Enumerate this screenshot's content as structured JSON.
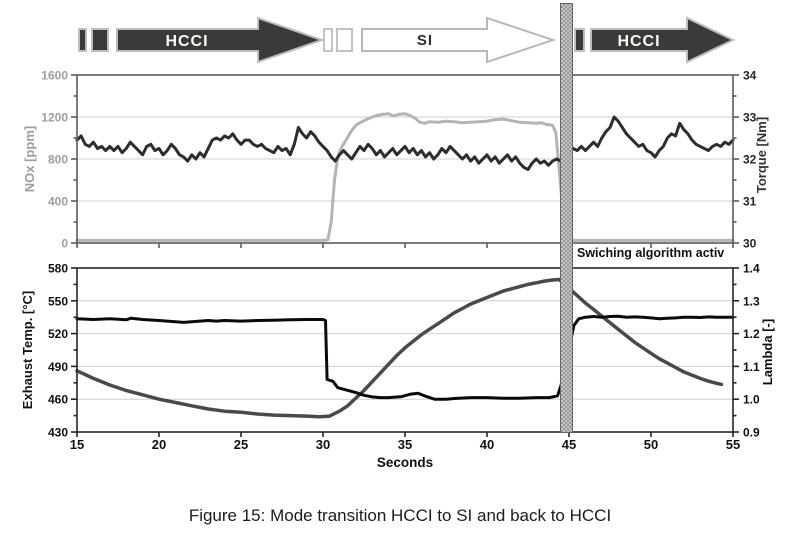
{
  "banner": {
    "hcci1": "HCCI",
    "si": "SI",
    "hcci2": "HCCI"
  },
  "annotation": "Swiching algorithm activ",
  "caption": "Figure 15: Mode transition HCCI to SI and back to HCCI",
  "colors": {
    "arrow_dark": "#3a3a3a",
    "arrow_outline": "#bdbdbd",
    "nox_line": "#b4b4b4",
    "torque_line": "#2d2d2d",
    "temp_line": "#4a4a4a",
    "lambda_line": "#0a0a0a",
    "grid": "#cfcfcf",
    "switch_bar": "#969696"
  },
  "chart_data": [
    {
      "type": "line",
      "title": "",
      "xlabel": "",
      "grid": true,
      "legend": "none",
      "x_range": [
        15,
        55
      ],
      "x_ticks": [
        15,
        20,
        25,
        30,
        35,
        40,
        45,
        50,
        55
      ],
      "x_tick_labels": null,
      "frame_color": "#5c5c5c",
      "left_axis": {
        "label": "NOx [ppm]",
        "range": [
          0,
          1600
        ],
        "ticks": [
          0,
          400,
          800,
          1200,
          1600
        ],
        "tick_labels": [
          "0",
          "400",
          "800",
          "1200",
          "1600"
        ],
        "color": "#9e9e9e"
      },
      "right_axis": {
        "label": "Torque [Nm]",
        "range": [
          30,
          34
        ],
        "ticks": [
          30,
          31,
          32,
          33,
          34
        ],
        "tick_labels": [
          "30",
          "31",
          "32",
          "33",
          "34"
        ],
        "color": "#262626"
      },
      "series": [
        {
          "name": "NOx",
          "axis": "left",
          "color": "#b4b4b4",
          "width": 3,
          "x": [
            15,
            30,
            30.3,
            30.5,
            30.7,
            30.9,
            31.1,
            31.4,
            31.7,
            32,
            32.3,
            32.7,
            33,
            33.3,
            33.6,
            34,
            34.3,
            34.6,
            35,
            35.3,
            35.6,
            35.9,
            36.2,
            36.5,
            37,
            37.5,
            38,
            38.5,
            39,
            39.5,
            40,
            40.5,
            41,
            41.5,
            42,
            42.5,
            43,
            43.3,
            43.6,
            44,
            44.2,
            44.4,
            44.6,
            44.8,
            45,
            45.3,
            55
          ],
          "y": [
            25,
            25,
            30,
            200,
            600,
            820,
            900,
            980,
            1060,
            1120,
            1150,
            1180,
            1200,
            1215,
            1225,
            1230,
            1210,
            1225,
            1230,
            1215,
            1190,
            1150,
            1140,
            1155,
            1150,
            1160,
            1155,
            1145,
            1150,
            1155,
            1160,
            1175,
            1180,
            1165,
            1150,
            1145,
            1140,
            1145,
            1130,
            1120,
            1050,
            700,
            350,
            100,
            30,
            25,
            25
          ]
        },
        {
          "name": "Torque",
          "axis": "right",
          "color": "#2d2d2d",
          "width": 3,
          "x_start": 15,
          "x_step": 0.25,
          "y": [
            32.45,
            32.55,
            32.35,
            32.3,
            32.4,
            32.25,
            32.3,
            32.2,
            32.3,
            32.2,
            32.3,
            32.15,
            32.25,
            32.4,
            32.3,
            32.2,
            32.1,
            32.3,
            32.35,
            32.2,
            32.25,
            32.1,
            32.2,
            32.35,
            32.25,
            32.1,
            32.05,
            31.95,
            32.1,
            32.0,
            32.15,
            32.05,
            32.25,
            32.45,
            32.5,
            32.45,
            32.55,
            32.5,
            32.6,
            32.45,
            32.35,
            32.45,
            32.45,
            32.35,
            32.3,
            32.35,
            32.25,
            32.2,
            32.15,
            32.3,
            32.2,
            32.25,
            32.1,
            32.35,
            32.75,
            32.6,
            32.5,
            32.65,
            32.55,
            32.4,
            32.3,
            32.2,
            32.05,
            31.95,
            32.1,
            32.2,
            32.1,
            32.0,
            32.15,
            32.3,
            32.2,
            32.35,
            32.25,
            32.1,
            32.2,
            32.05,
            32.15,
            32.25,
            32.1,
            32.2,
            32.3,
            32.15,
            32.25,
            32.1,
            32.2,
            32.05,
            32.15,
            32.0,
            32.1,
            32.25,
            32.15,
            32.3,
            32.2,
            32.1,
            32.0,
            32.1,
            31.95,
            32.05,
            31.9,
            32.0,
            32.1,
            31.95,
            32.05,
            31.9,
            32.0,
            32.1,
            31.95,
            32.05,
            31.9,
            31.8,
            31.75,
            31.9,
            32.0,
            31.9,
            31.95,
            31.85,
            31.95,
            32.0,
            31.95,
            32.1,
            32.2,
            32.25,
            32.2,
            32.3,
            32.2,
            32.3,
            32.4,
            32.3,
            32.5,
            32.65,
            32.75,
            33.0,
            32.9,
            32.75,
            32.6,
            32.5,
            32.4,
            32.3,
            32.35,
            32.2,
            32.15,
            32.05,
            32.2,
            32.3,
            32.5,
            32.6,
            32.55,
            32.85,
            32.7,
            32.6,
            32.45,
            32.35,
            32.3,
            32.25,
            32.2,
            32.3,
            32.35,
            32.3,
            32.4,
            32.35,
            32.45
          ]
        }
      ]
    },
    {
      "type": "line",
      "title": "",
      "xlabel": "Seconds",
      "grid": true,
      "legend": "none",
      "x_range": [
        15,
        55
      ],
      "x_ticks": [
        15,
        20,
        25,
        30,
        35,
        40,
        45,
        50,
        55
      ],
      "x_tick_labels": [
        "15",
        "20",
        "25",
        "30",
        "35",
        "40",
        "45",
        "50",
        "55"
      ],
      "frame_color": "#262626",
      "left_axis": {
        "label": "Exhaust Temp. [°C]",
        "range": [
          430,
          580
        ],
        "ticks": [
          430,
          460,
          490,
          520,
          550,
          580
        ],
        "tick_labels": [
          "430",
          "460",
          "490",
          "520",
          "550",
          "580"
        ],
        "color": "#111111"
      },
      "right_axis": {
        "label": "Lambda [-]",
        "range": [
          0.9,
          1.4
        ],
        "ticks": [
          0.9,
          1.0,
          1.1,
          1.2,
          1.3,
          1.4
        ],
        "tick_labels": [
          "0.9",
          "1.0",
          "1.1",
          "1.2",
          "1.3",
          "1.4"
        ],
        "color": "#111111"
      },
      "series": [
        {
          "name": "Exhaust Temp",
          "axis": "left",
          "color": "#4a4a4a",
          "width": 3.5,
          "x": [
            15,
            16,
            17,
            18,
            19,
            20,
            21,
            22,
            23,
            24,
            25,
            26,
            27,
            28,
            29,
            29.8,
            30.4,
            31,
            31.5,
            32,
            32.5,
            33,
            33.5,
            34,
            34.5,
            35,
            35.5,
            36,
            36.5,
            37,
            37.5,
            38,
            38.5,
            39,
            39.5,
            40,
            40.5,
            41,
            41.5,
            42,
            42.5,
            43,
            43.5,
            44,
            44.4,
            45.4,
            45.7,
            46,
            46.5,
            47,
            47.5,
            48,
            48.5,
            49,
            49.5,
            50,
            50.5,
            51,
            51.5,
            52,
            52.5,
            53,
            53.5,
            54,
            54.3
          ],
          "y": [
            486,
            479,
            473,
            468,
            464,
            460,
            457,
            454,
            451,
            449,
            448,
            446.5,
            445.5,
            445,
            444.5,
            444,
            444.5,
            449,
            454,
            461,
            468,
            476,
            484,
            492,
            500,
            507,
            513,
            519,
            524,
            529,
            534,
            539,
            543,
            547,
            550,
            553,
            556,
            559,
            561,
            563,
            565,
            566.5,
            568,
            569,
            569.5,
            556,
            552,
            548,
            542,
            536,
            530,
            524,
            518,
            512,
            507,
            502,
            497,
            493,
            489,
            485,
            482,
            479,
            476.5,
            474.5,
            473.5
          ]
        },
        {
          "name": "Lambda",
          "axis": "right",
          "color": "#0a0a0a",
          "width": 3,
          "x": [
            15,
            16,
            17,
            18,
            18.3,
            19,
            20,
            21,
            21.5,
            22,
            23,
            23.5,
            24,
            25,
            26,
            27,
            28,
            29,
            30,
            30.15,
            30.25,
            30.6,
            30.9,
            31.3,
            32,
            32.5,
            33,
            33.5,
            34,
            34.8,
            35.3,
            35.8,
            36.2,
            36.8,
            37.5,
            38,
            39,
            40,
            41,
            42,
            43,
            43.8,
            44.3,
            44.5,
            45.15,
            45.3,
            45.6,
            46,
            46.5,
            47,
            47.5,
            48,
            48.5,
            49,
            49.5,
            50,
            50.5,
            51,
            51.5,
            52,
            52.5,
            53,
            53.5,
            54,
            54.5,
            55
          ],
          "y": [
            1.245,
            1.243,
            1.245,
            1.242,
            1.247,
            1.243,
            1.24,
            1.236,
            1.234,
            1.236,
            1.24,
            1.238,
            1.24,
            1.238,
            1.24,
            1.241,
            1.242,
            1.243,
            1.243,
            1.24,
            1.06,
            1.055,
            1.035,
            1.03,
            1.02,
            1.012,
            1.007,
            1.005,
            1.005,
            1.008,
            1.015,
            1.018,
            1.01,
            1.0,
            1.0,
            1.002,
            1.005,
            1.005,
            1.003,
            1.003,
            1.005,
            1.005,
            1.01,
            1.04,
            1.19,
            1.225,
            1.245,
            1.25,
            1.252,
            1.25,
            1.252,
            1.253,
            1.25,
            1.251,
            1.25,
            1.248,
            1.245,
            1.247,
            1.248,
            1.25,
            1.25,
            1.249,
            1.251,
            1.25,
            1.25,
            1.25
          ]
        }
      ]
    }
  ]
}
